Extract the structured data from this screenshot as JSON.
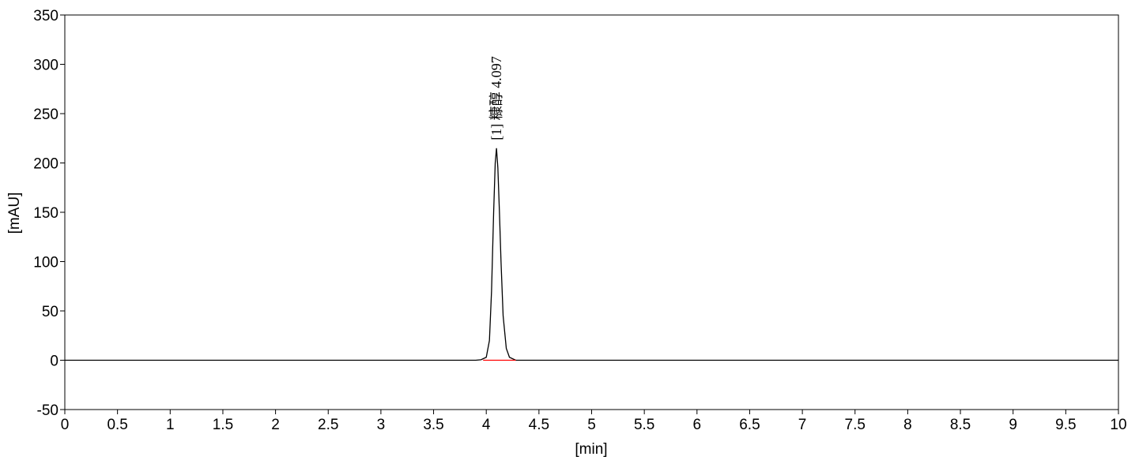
{
  "chart_data": {
    "type": "line",
    "xlabel": "[min]",
    "ylabel": "[mAU]",
    "xlim": [
      0,
      10
    ],
    "ylim": [
      -50,
      350
    ],
    "xticks": [
      0,
      0.5,
      1,
      1.5,
      2,
      2.5,
      3,
      3.5,
      4,
      4.5,
      5,
      5.5,
      6,
      6.5,
      7,
      7.5,
      8,
      8.5,
      9,
      9.5,
      10
    ],
    "yticks": [
      -50,
      0,
      50,
      100,
      150,
      200,
      250,
      300,
      350
    ],
    "series": [
      {
        "color": "#000000",
        "x": [
          0,
          1,
          2,
          3,
          3.9,
          3.95,
          4.0,
          4.03,
          4.05,
          4.07,
          4.085,
          4.097,
          4.11,
          4.125,
          4.14,
          4.16,
          4.19,
          4.22,
          4.28,
          5,
          6,
          7,
          8,
          9,
          10
        ],
        "values": [
          0,
          0,
          0,
          0,
          0,
          0.5,
          3,
          20,
          70,
          150,
          200,
          215,
          195,
          150,
          100,
          45,
          12,
          3,
          0,
          0,
          0,
          0,
          0,
          0,
          0
        ]
      },
      {
        "color": "#ff0000",
        "x": [
          3.97,
          4.28
        ],
        "values": [
          0,
          0
        ]
      }
    ],
    "annotations": [
      {
        "text": "[1] 糠醇 4.097",
        "x": 4.097,
        "y": 215,
        "color": "#5a5aff"
      }
    ]
  }
}
